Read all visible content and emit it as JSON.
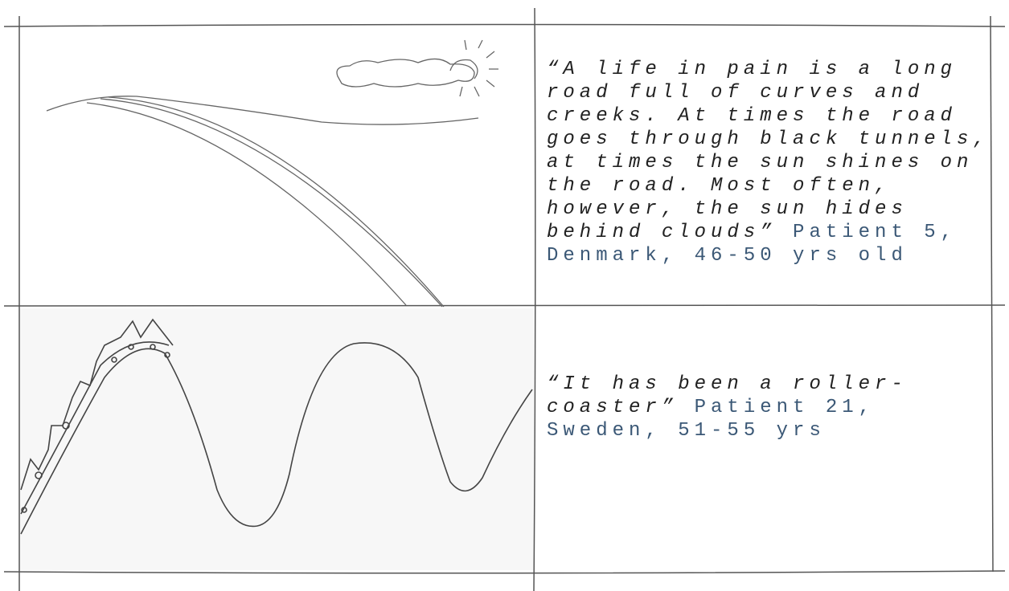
{
  "panels": [
    {
      "quote": "“A life in pain is a long road full of curves and creeks. At times the road goes through black tunnels, at times the sun shines on the road. Most often, however, the sun hides behind clouds”",
      "attribution": "Patient 5, Denmark, 46-50 yrs old"
    },
    {
      "quote": "“It has been a roller-coaster”",
      "attribution": "Patient 21, Sweden, 51-55 yrs"
    }
  ]
}
